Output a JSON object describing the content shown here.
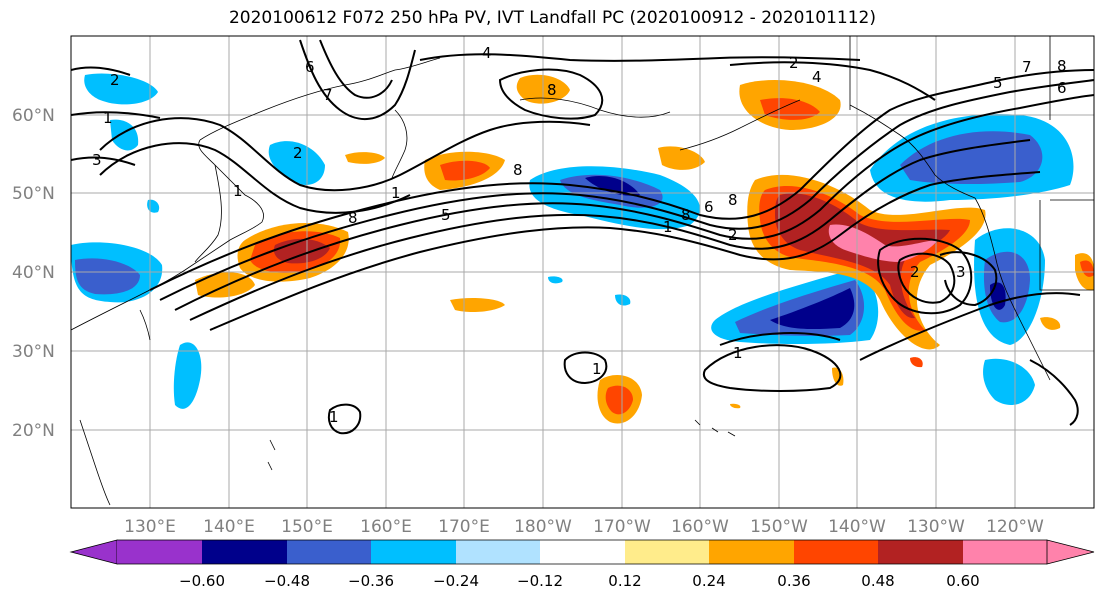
{
  "title": "2020100612 F072 250 hPa PV, IVT Landfall PC (2020100912 - 2020101112)",
  "lat_labels": [
    "60°N",
    "50°N",
    "40°N",
    "30°N",
    "20°N"
  ],
  "lon_labels": [
    "130°E",
    "140°E",
    "150°E",
    "160°E",
    "170°E",
    "180°W",
    "170°W",
    "160°W",
    "150°W",
    "140°W",
    "130°W",
    "120°W"
  ],
  "colorbar": {
    "colors": [
      "#9932cc",
      "#00008b",
      "#3a5fcd",
      "#00bfff",
      "#b0e2ff",
      "#ffffff",
      "#ffec8b",
      "#ffa500",
      "#ff4500",
      "#b22222",
      "#ff82ab",
      "#ff82ab"
    ],
    "tick_labels": [
      "−0.60",
      "−0.48",
      "−0.36",
      "−0.24",
      "−0.12",
      "0.12",
      "0.24",
      "0.36",
      "0.48",
      "0.60"
    ]
  },
  "contour_labels": [
    "2",
    "1",
    "3",
    "6",
    "7",
    "4",
    "8",
    "2",
    "1",
    "8",
    "5",
    "8",
    "1",
    "8",
    "2",
    "6",
    "8",
    "1",
    "2",
    "3",
    "4",
    "5",
    "6",
    "8",
    "7",
    "2",
    "3",
    "1",
    "1",
    "1"
  ]
}
